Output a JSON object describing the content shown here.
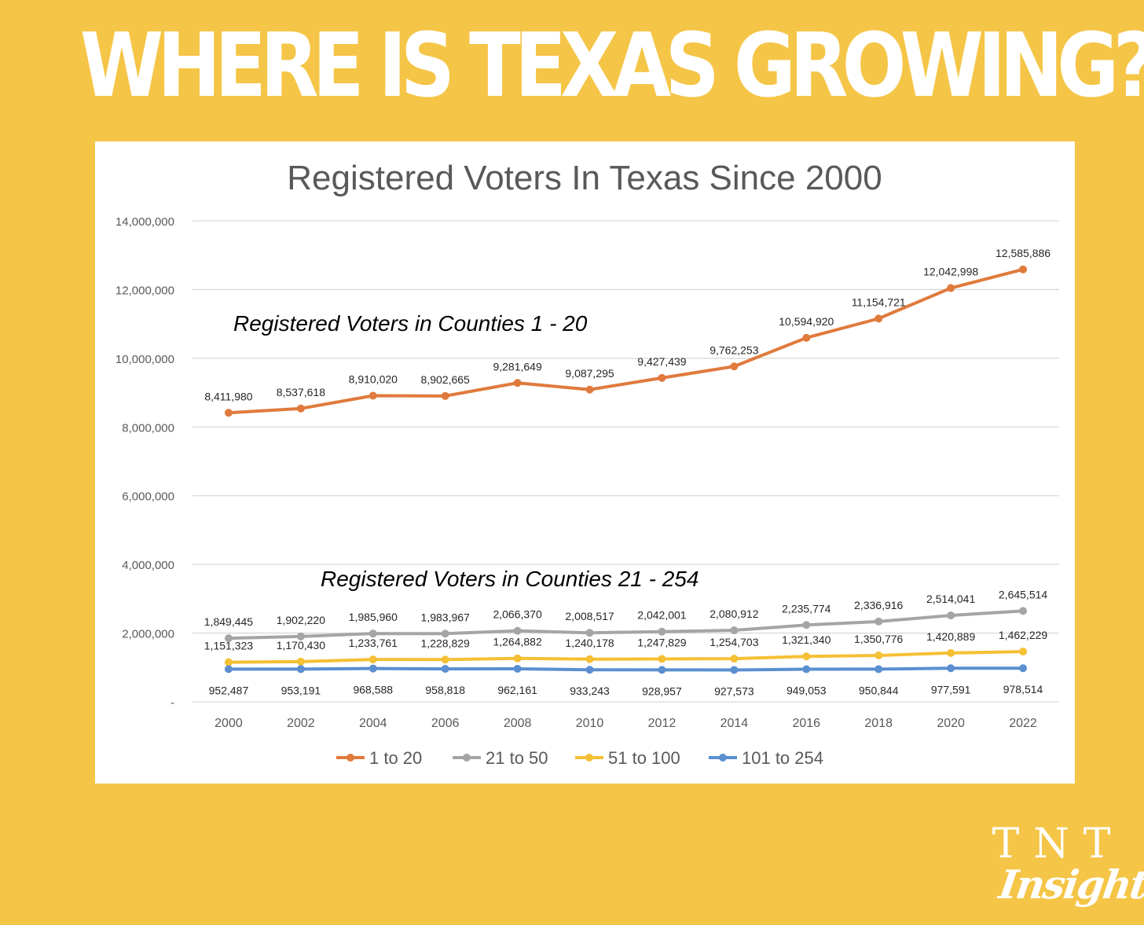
{
  "headline": "WHERE IS TEXAS GROWING?",
  "brand": {
    "line1": "TNT",
    "line2": "Insights"
  },
  "colors": {
    "background": "#F5C547",
    "panel": "#FFFFFF",
    "grid": "#D9D9D9",
    "axis_text": "#595959",
    "title_text": "#595959",
    "label_text": "#262626"
  },
  "chart_data": {
    "type": "line",
    "title": "Registered Voters In Texas Since 2000",
    "xlabel": "",
    "ylabel": "",
    "ylim": [
      0,
      14000000
    ],
    "yticks": [
      0,
      2000000,
      4000000,
      6000000,
      8000000,
      10000000,
      12000000,
      14000000
    ],
    "ytick_labels": [
      "-",
      "2,000,000",
      "4,000,000",
      "6,000,000",
      "8,000,000",
      "10,000,000",
      "12,000,000",
      "14,000,000"
    ],
    "grid": true,
    "legend_position": "bottom",
    "categories": [
      "2000",
      "2002",
      "2004",
      "2006",
      "2008",
      "2010",
      "2012",
      "2014",
      "2016",
      "2018",
      "2020",
      "2022"
    ],
    "annotations": [
      {
        "text": "Registered Voters in Counties 1 - 20"
      },
      {
        "text": "Registered Voters in Counties 21 - 254"
      }
    ],
    "series": [
      {
        "name": "1 to 20",
        "color": "#E07A3C",
        "label_placement": "above",
        "values": [
          8411980,
          8537618,
          8910020,
          8902665,
          9281649,
          9087295,
          9427439,
          9762253,
          10594920,
          11154721,
          12042998,
          12585886
        ],
        "labels": [
          "8,411,980",
          "8,537,618",
          "8,910,020",
          "8,902,665",
          "9,281,649",
          "9,087,295",
          "9,427,439",
          "9,762,253",
          "10,594,920",
          "11,154,721",
          "12,042,998",
          "12,585,886"
        ]
      },
      {
        "name": "21 to 50",
        "color": "#A5A5A5",
        "label_placement": "above",
        "values": [
          1849445,
          1902220,
          1985960,
          1983967,
          2066370,
          2008517,
          2042001,
          2080912,
          2235774,
          2336916,
          2514041,
          2645514
        ],
        "labels": [
          "1,849,445",
          "1,902,220",
          "1,985,960",
          "1,983,967",
          "2,066,370",
          "2,008,517",
          "2,042,001",
          "2,080,912",
          "2,235,774",
          "2,336,916",
          "2,514,041",
          "2,645,514"
        ]
      },
      {
        "name": "51 to 100",
        "color": "#F5C035",
        "label_placement": "above",
        "values": [
          1151323,
          1170430,
          1233761,
          1228829,
          1264882,
          1240178,
          1247829,
          1254703,
          1321340,
          1350776,
          1420889,
          1462229
        ],
        "labels": [
          "1,151,323",
          "1,170,430",
          "1,233,761",
          "1,228,829",
          "1,264,882",
          "1,240,178",
          "1,247,829",
          "1,254,703",
          "1,321,340",
          "1,350,776",
          "1,420,889",
          "1,462,229"
        ]
      },
      {
        "name": "101 to 254",
        "color": "#5B8FD0",
        "label_placement": "below",
        "values": [
          952487,
          953191,
          968588,
          958818,
          962161,
          933243,
          928957,
          927573,
          949053,
          950844,
          977591,
          978514
        ],
        "labels": [
          "952,487",
          "953,191",
          "968,588",
          "958,818",
          "962,161",
          "933,243",
          "928,957",
          "927,573",
          "949,053",
          "950,844",
          "977,591",
          "978,514"
        ]
      }
    ]
  }
}
